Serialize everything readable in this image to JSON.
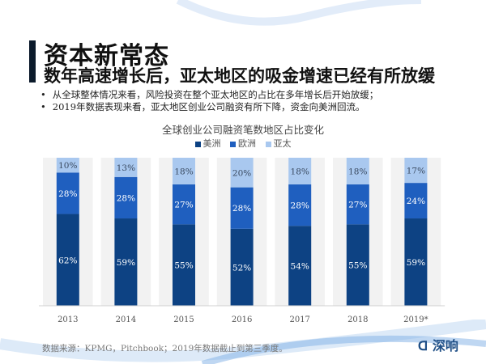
{
  "header": {
    "title": "资本新常态",
    "subtitle": "数年高速增长后，亚太地区的吸金增速已经有所放缓"
  },
  "bullets": [
    "从全球整体情况来看，风险投资在整个亚太地区的占比在多年增长后开始放缓；",
    "2019年数据表现来看，亚太地区创业公司融资有所下降，资金向美洲回流。"
  ],
  "chart_data": {
    "type": "bar",
    "stacked": true,
    "title": "全球创业公司融资笔数地区占比变化",
    "categories": [
      "2013",
      "2014",
      "2015",
      "2016",
      "2017",
      "2018",
      "2019*"
    ],
    "series": [
      {
        "name": "美洲",
        "color": "#0d4283",
        "values": [
          62,
          59,
          55,
          52,
          54,
          55,
          59
        ]
      },
      {
        "name": "欧洲",
        "color": "#1f5fbf",
        "values": [
          28,
          28,
          27,
          28,
          28,
          27,
          24
        ]
      },
      {
        "name": "亚太",
        "color": "#a9c8ef",
        "values": [
          10,
          13,
          18,
          20,
          18,
          18,
          17
        ]
      }
    ],
    "value_suffix": "%",
    "ylim": [
      0,
      100
    ],
    "legend_position": "top",
    "grid": false
  },
  "footer": {
    "source": "数据来源：KPMG，Pitchbook；2019年数据截止到第三季度。",
    "logo": "深响"
  }
}
